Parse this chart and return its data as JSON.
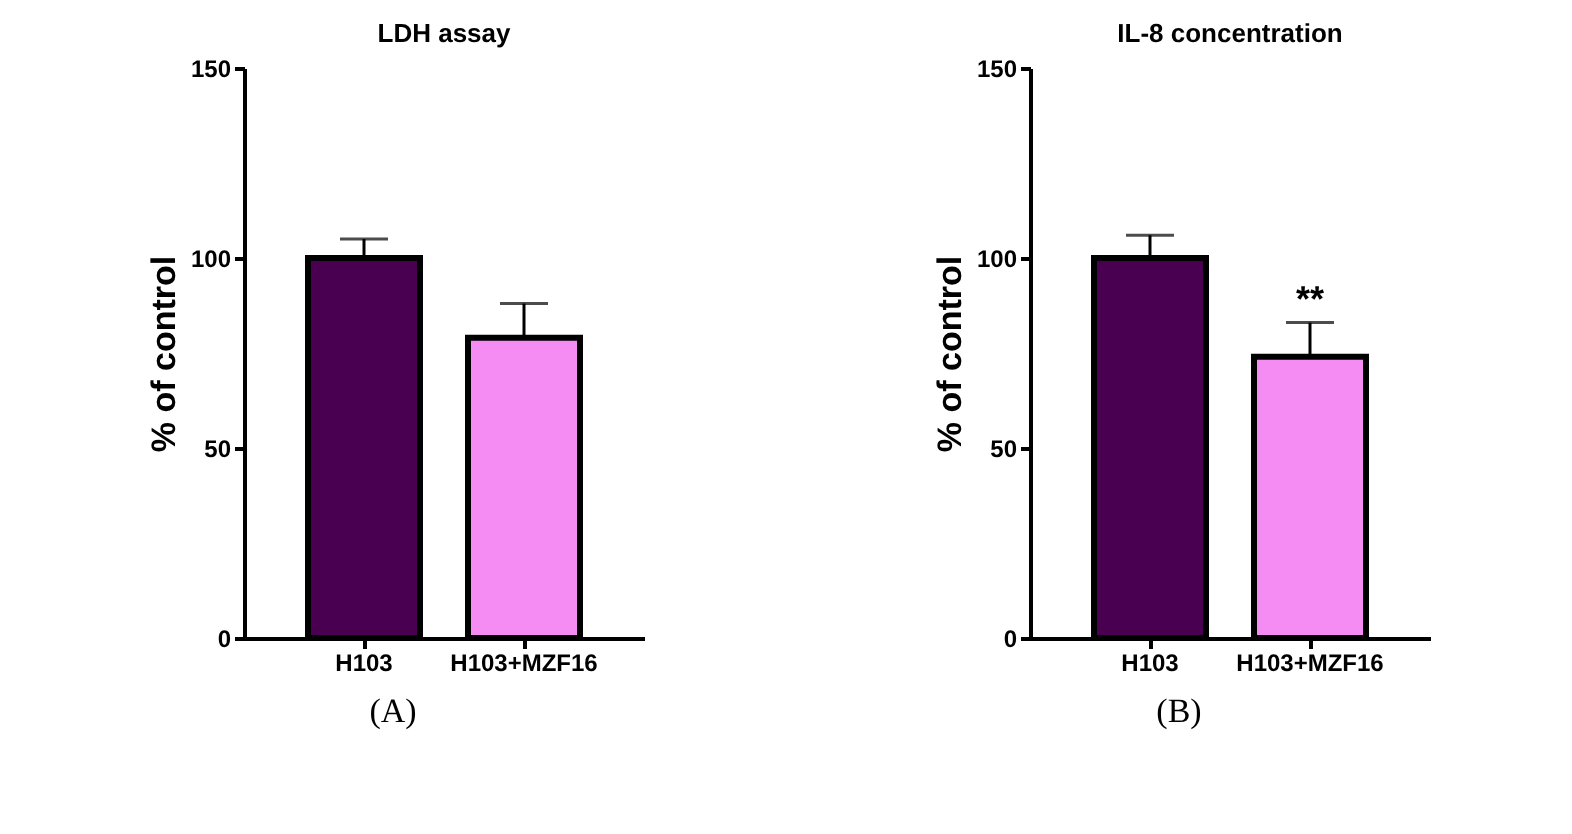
{
  "chart_data": [
    {
      "type": "bar",
      "title": "LDH assay",
      "ylabel": "% of control",
      "categories": [
        "H103",
        "H103+MZF16"
      ],
      "values": [
        100,
        79
      ],
      "colors": [
        "#4a0050",
        "#f48cf4"
      ],
      "errors": [
        5,
        9
      ],
      "ylim": [
        0,
        150
      ],
      "yticks": [
        0,
        50,
        100,
        150
      ],
      "grid": false,
      "annotations": [
        "(A)"
      ]
    },
    {
      "type": "bar",
      "title": "IL-8 concentration",
      "ylabel": "% of control",
      "categories": [
        "H103",
        "H103+MZF16"
      ],
      "values": [
        100,
        74
      ],
      "colors": [
        "#4a0050",
        "#f48cf4"
      ],
      "errors": [
        6,
        9
      ],
      "ylim": [
        0,
        150
      ],
      "yticks": [
        0,
        50,
        100,
        150
      ],
      "grid": false,
      "annotations": [
        {
          "text": "**",
          "x": "H103+MZF16",
          "y": 83
        },
        "(B)"
      ]
    }
  ]
}
